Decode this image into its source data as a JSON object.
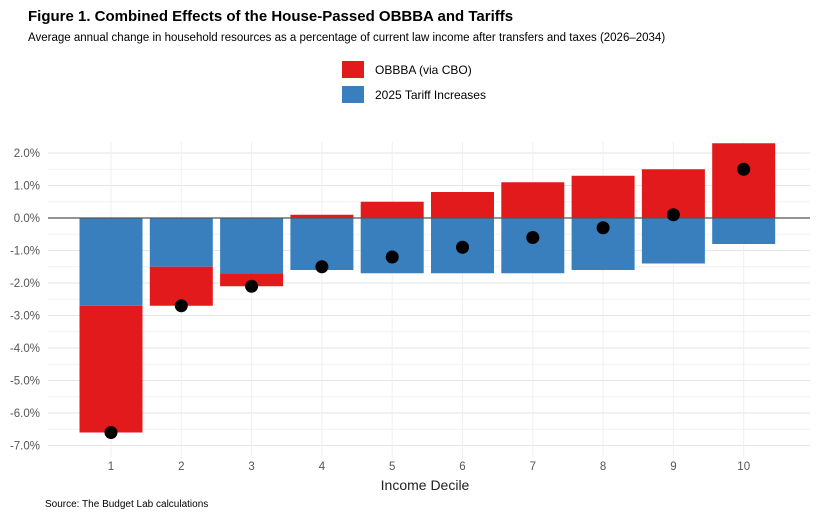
{
  "title": "Figure 1. Combined Effects of the House-Passed OBBBA and Tariffs",
  "subtitle": "Average annual change in household resources as a percentage of current law income after transfers and taxes (2026–2034)",
  "source": "Source: The Budget Lab calculations",
  "legend": [
    {
      "label": "OBBBA (via CBO)",
      "color": "#e31a1c"
    },
    {
      "label": "2025 Tariff Increases",
      "color": "#3a7fbd"
    }
  ],
  "chart_data": {
    "type": "bar",
    "stacked": true,
    "title": "Figure 1. Combined Effects of the House-Passed OBBBA and Tariffs",
    "xlabel": "Income Decile",
    "ylabel": "",
    "categories": [
      "1",
      "2",
      "3",
      "4",
      "5",
      "6",
      "7",
      "8",
      "9",
      "10"
    ],
    "series": [
      {
        "name": "2025 Tariff Increases",
        "color": "#3a7fbd",
        "values": [
          -2.7,
          -1.5,
          -1.7,
          -1.6,
          -1.7,
          -1.7,
          -1.7,
          -1.6,
          -1.4,
          -0.8
        ]
      },
      {
        "name": "OBBBA (via CBO)",
        "color": "#e31a1c",
        "values": [
          -3.9,
          -1.2,
          -0.4,
          0.1,
          0.5,
          0.8,
          1.1,
          1.3,
          1.5,
          2.3
        ]
      }
    ],
    "net": [
      -6.6,
      -2.7,
      -2.1,
      -1.5,
      -1.2,
      -0.9,
      -0.6,
      -0.3,
      0.1,
      1.5
    ],
    "ylim": [
      -7.0,
      2.3
    ],
    "yticks": [
      2,
      1,
      0,
      -1,
      -2,
      -3,
      -4,
      -5,
      -6,
      -7
    ],
    "ytick_labels": [
      "2.0%",
      "1.0%",
      "0.0%",
      "-1.0%",
      "-2.0%",
      "-3.0%",
      "-4.0%",
      "-5.0%",
      "-6.0%",
      "-7.0%"
    ],
    "grid": true,
    "legend_position": "top-center"
  }
}
